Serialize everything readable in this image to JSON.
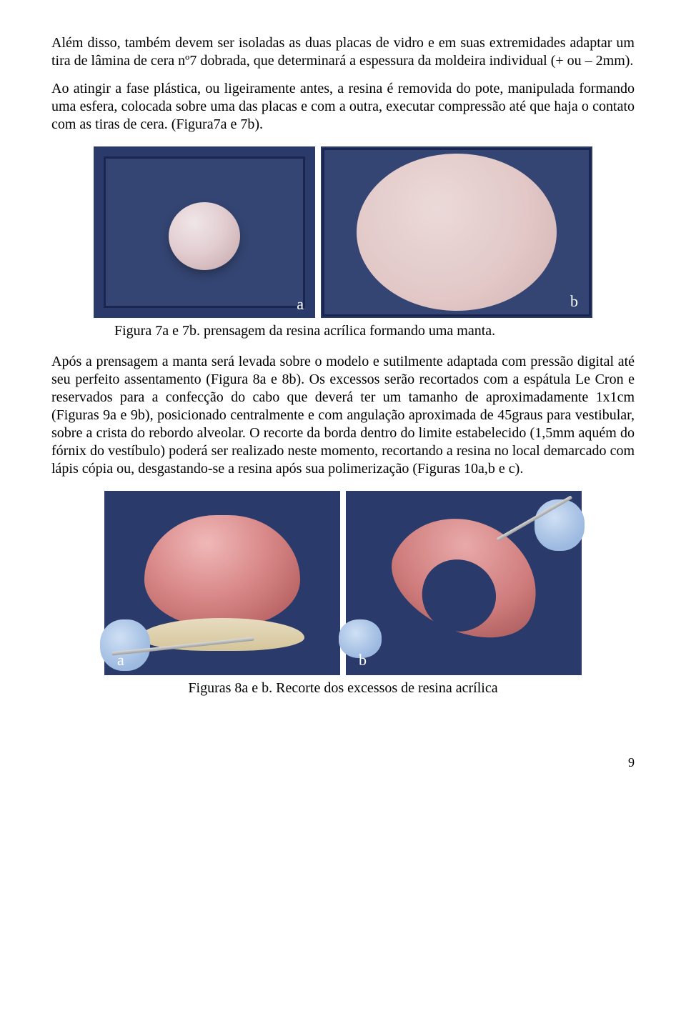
{
  "paragraph1": "Além disso, também devem ser isoladas as duas placas de vidro e em suas extremidades adaptar um tira de lâmina de cera nº7 dobrada, que determinará a espessura da moldeira individual (+ ou – 2mm).",
  "paragraph2": "Ao atingir a fase plástica, ou ligeiramente antes, a resina é removida do pote, manipulada formando uma esfera, colocada sobre uma das placas e com a outra, executar compressão até que haja o contato com as tiras de cera. (Figura7a e 7b).",
  "fig7": {
    "label_a": "a",
    "label_b": "b",
    "caption": "Figura 7a e 7b. prensagem da resina acrílica formando uma manta.",
    "bg_color": "#2a3a6a",
    "resin_color": "#e7c9c6"
  },
  "paragraph3": "Após a prensagem a manta será levada sobre o modelo e sutilmente adaptada com pressão digital até seu perfeito assentamento (Figura 8a e 8b). Os excessos serão recortados com a espátula Le Cron e reservados para a confecção do cabo que deverá ter um tamanho de aproximadamente 1x1cm (Figuras 9a e 9b), posicionado centralmente e com angulação aproximada de 45graus para vestibular, sobre a crista do rebordo alveolar. O recorte da borda dentro do limite estabelecido (1,5mm aquém do fórnix do vestíbulo) poderá ser realizado neste momento, recortando a resina no local demarcado com lápis cópia ou, desgastando-se a resina após sua polimerização (Figuras 10a,b e c).",
  "fig8": {
    "label_a": "a",
    "label_b": "b",
    "caption": "Figuras 8a e b. Recorte dos excessos de resina acrílica",
    "bg_color": "#2a3a6a",
    "resin_color": "#d98989",
    "base_color": "#d4c59a",
    "glove_color": "#9cb9e0"
  },
  "page_number": "9",
  "colors": {
    "text": "#000000",
    "background": "#ffffff"
  }
}
